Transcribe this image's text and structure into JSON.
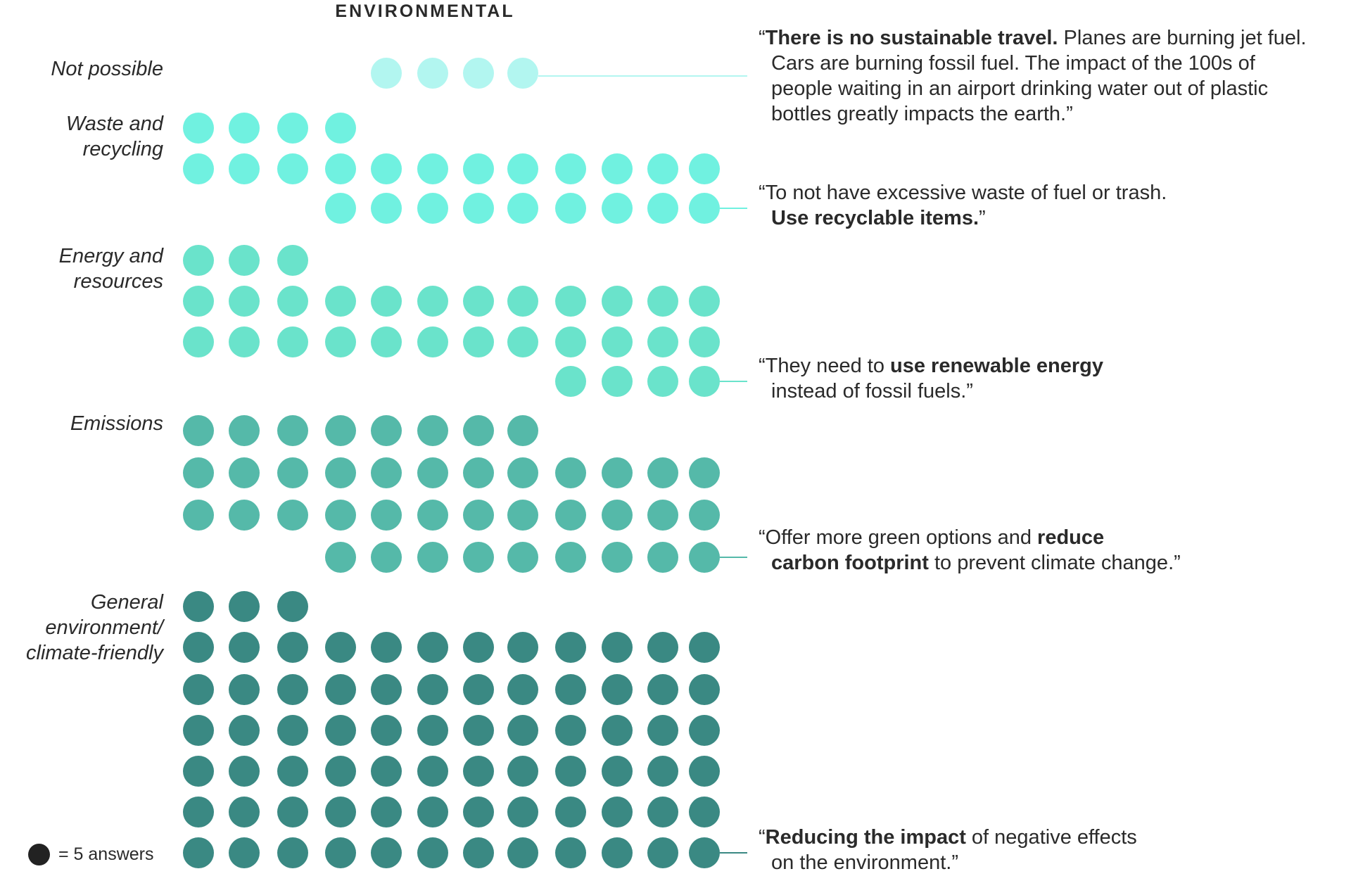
{
  "chart_data": {
    "type": "dot-matrix",
    "title": "ENVIRONMENTAL",
    "unit_label": "= 5 answers",
    "dots_per_unit": 5,
    "categories": [
      {
        "label_lines": [
          "Not possible"
        ],
        "dot_count": 4,
        "answers": 20,
        "color": "#b2f6f0",
        "row_counts": [
          4
        ],
        "quote": [
          [
            {
              "t": "“",
              "b": false
            },
            {
              "t": "There is no sustainable travel.",
              "b": true
            },
            {
              "t": " Planes are burning jet fuel.",
              "b": false
            }
          ],
          [
            {
              "t": "Cars are burning fossil fuel. The impact of the 100s of",
              "b": false
            }
          ],
          [
            {
              "t": "people waiting in an airport drinking water out of plastic",
              "b": false
            }
          ],
          [
            {
              "t": "bottles greatly impacts the earth.”",
              "b": false
            }
          ]
        ]
      },
      {
        "label_lines": [
          "Waste and",
          "recycling"
        ],
        "dot_count": 25,
        "answers": 125,
        "color": "#70f1e0",
        "row_counts": [
          4,
          12,
          9
        ],
        "quote": [
          [
            {
              "t": "“To not have excessive waste of fuel or trash.",
              "b": false
            }
          ],
          [
            {
              "t": "Use recyclable items.",
              "b": true
            },
            {
              "t": "”",
              "b": false
            }
          ]
        ]
      },
      {
        "label_lines": [
          "Energy and",
          "resources"
        ],
        "dot_count": 31,
        "answers": 155,
        "color": "#6ae3cb",
        "row_counts": [
          3,
          12,
          12,
          4
        ],
        "quote": [
          [
            {
              "t": "“They need to ",
              "b": false
            },
            {
              "t": "use renewable energy",
              "b": true
            }
          ],
          [
            {
              "t": "instead of fossil fuels.”",
              "b": false
            }
          ]
        ]
      },
      {
        "label_lines": [
          "Emissions"
        ],
        "dot_count": 41,
        "answers": 205,
        "color": "#55b9a9",
        "row_counts": [
          8,
          12,
          12,
          9
        ],
        "quote": [
          [
            {
              "t": "“Offer more green options and ",
              "b": false
            },
            {
              "t": "reduce",
              "b": true
            }
          ],
          [
            {
              "t": "carbon footprint",
              "b": true
            },
            {
              "t": " to prevent climate change.”",
              "b": false
            }
          ]
        ]
      },
      {
        "label_lines": [
          "General",
          "environment/",
          "climate-friendly"
        ],
        "dot_count": 75,
        "answers": 375,
        "color": "#3a8983",
        "row_counts": [
          3,
          12,
          12,
          12,
          12,
          12,
          12
        ],
        "quote": [
          [
            {
              "t": "“",
              "b": false
            },
            {
              "t": "Reducing the impact",
              "b": true
            },
            {
              "t": " of negative effects",
              "b": false
            }
          ],
          [
            {
              "t": "on the environment.”",
              "b": false
            }
          ]
        ]
      }
    ]
  }
}
